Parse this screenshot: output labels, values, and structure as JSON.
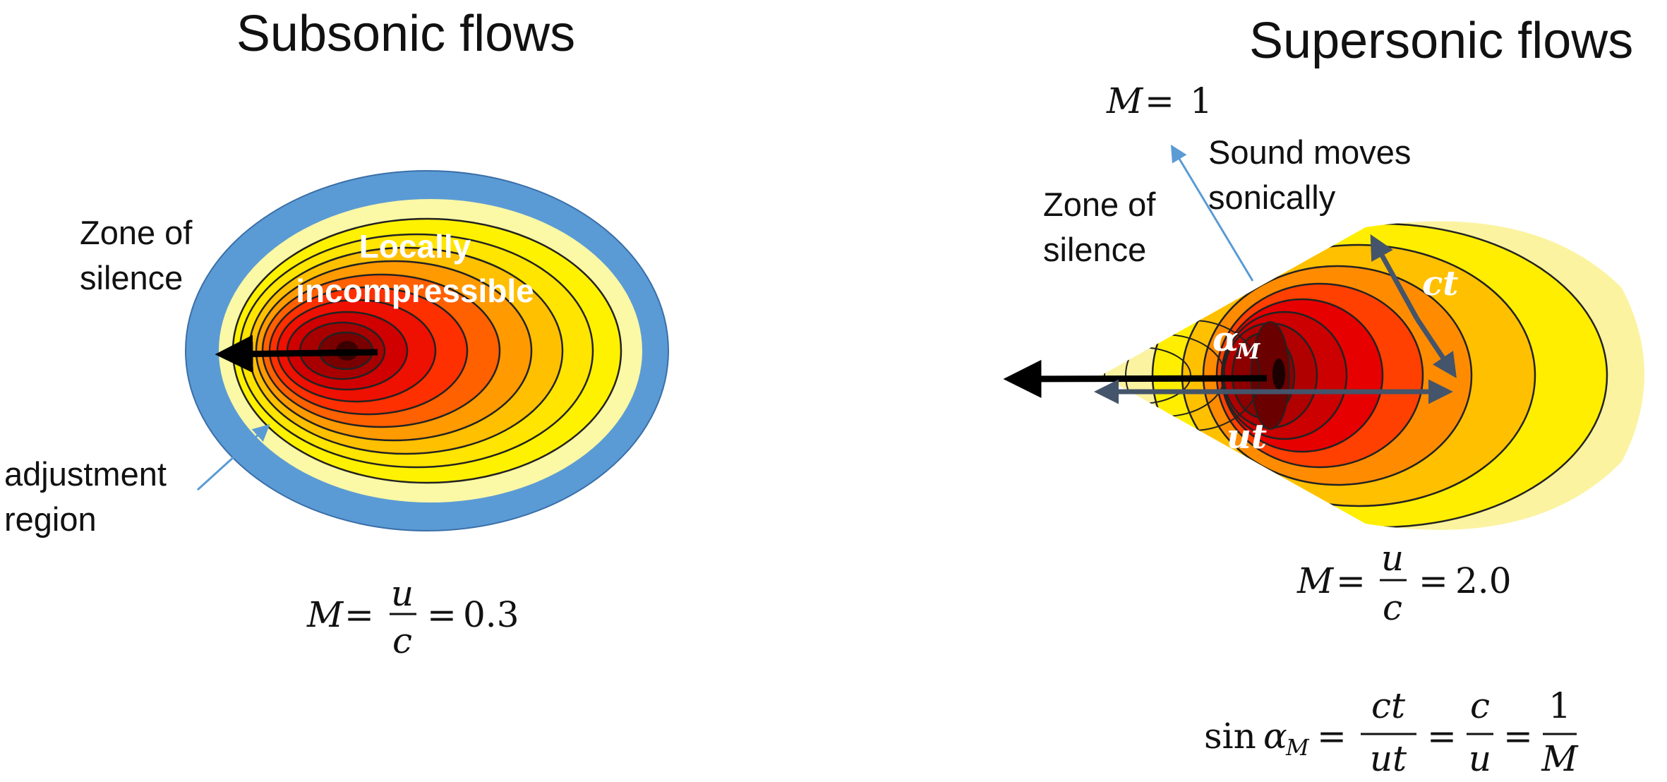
{
  "subsonic": {
    "title": "Subsonic flows",
    "zone_of_silence": [
      "Zone of",
      "silence"
    ],
    "core_label": [
      "Locally",
      "incompressible"
    ],
    "adjustment": [
      "adjustment",
      "region"
    ],
    "formula": {
      "lhs": "M",
      "eq1": "=",
      "num": "u",
      "den": "c",
      "eq2": "=",
      "value": "0.3"
    }
  },
  "supersonic": {
    "title": "Supersonic flows",
    "mach_line": {
      "lhs": "M",
      "eq": "=",
      "value": "1"
    },
    "sound_moves": [
      "Sound moves",
      "sonically"
    ],
    "zone_of_silence": [
      "Zone of",
      "silence"
    ],
    "ct_label": "ct",
    "ut_label": "ut",
    "alpha_label": {
      "sym": "α",
      "sub": "M"
    },
    "formula": {
      "lhs": "M",
      "eq1": "=",
      "num": "u",
      "den": "c",
      "eq2": "=",
      "value": "2.0"
    },
    "sine_formula": {
      "sin": "sin",
      "alpha": "α",
      "sub": "M",
      "eq1": "=",
      "f1_num": "ct",
      "f1_den": "ut",
      "eq2": "=",
      "f2_num": "c",
      "f2_den": "u",
      "eq3": "=",
      "f3_num": "1",
      "f3_den": "M"
    }
  },
  "colors": {
    "blue_ring": "#5b9bd5",
    "pale_yellow": "#fbf8a6",
    "yellow": "#ffee00",
    "gold": "#ffc000",
    "orange": "#ff8c00",
    "red_orange": "#ff4000",
    "red": "#e60000",
    "dark_red": "#b00000",
    "maroon": "#7a0000",
    "arrow_gray": "#44546a",
    "pointer_blue": "#5b9bd5"
  }
}
